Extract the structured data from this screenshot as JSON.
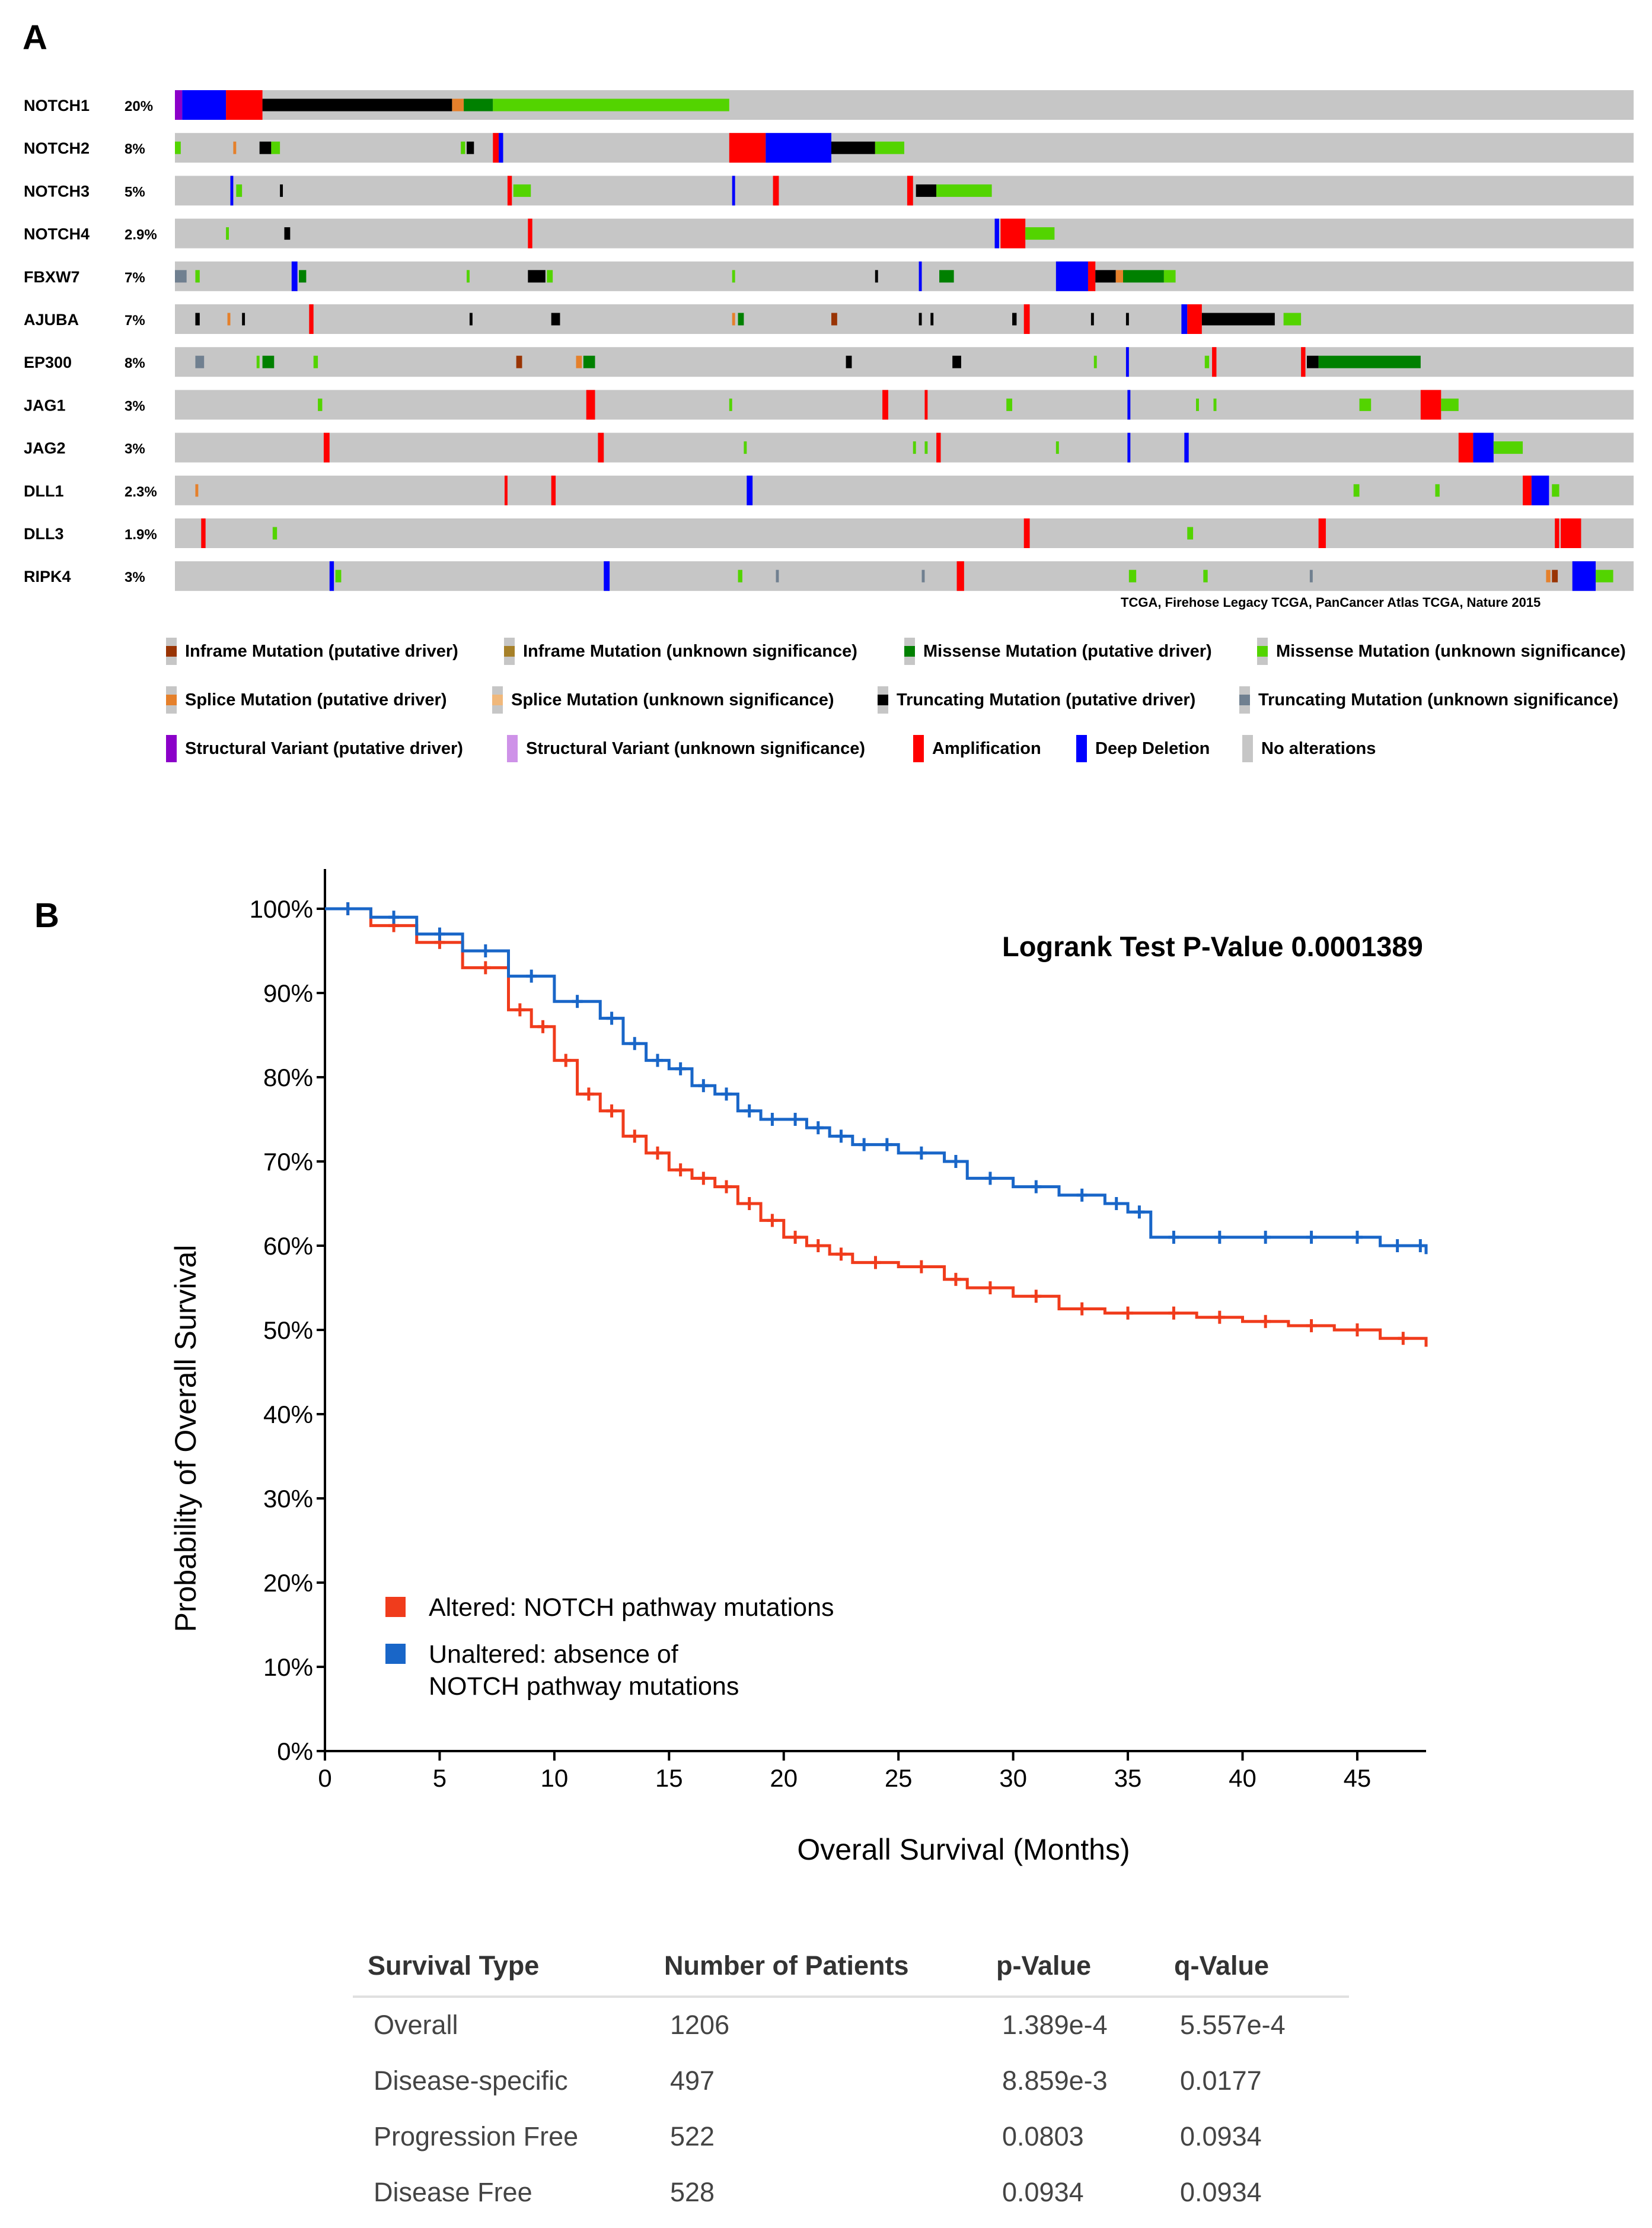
{
  "panel_a": {
    "label": "A",
    "genes": [
      {
        "name": "NOTCH1",
        "pct": "20%"
      },
      {
        "name": "NOTCH2",
        "pct": "8%"
      },
      {
        "name": "NOTCH3",
        "pct": "5%"
      },
      {
        "name": "NOTCH4",
        "pct": "2.9%"
      },
      {
        "name": "FBXW7",
        "pct": "7%"
      },
      {
        "name": "AJUBA",
        "pct": "7%"
      },
      {
        "name": "EP300",
        "pct": "8%"
      },
      {
        "name": "JAG1",
        "pct": "3%"
      },
      {
        "name": "JAG2",
        "pct": "3%"
      },
      {
        "name": "DLL1",
        "pct": "2.3%"
      },
      {
        "name": "DLL3",
        "pct": "1.9%"
      },
      {
        "name": "RIPK4",
        "pct": "3%"
      }
    ],
    "source_note": "TCGA, Firehose Legacy   TCGA, PanCancer Atlas   TCGA, Nature 2015",
    "legend": [
      {
        "label": "Inframe Mutation (putative driver)",
        "color": "#993404",
        "kind": "inner"
      },
      {
        "label": "Inframe Mutation (unknown significance)",
        "color": "#a68028",
        "kind": "inner"
      },
      {
        "label": "Missense Mutation (putative driver)",
        "color": "#008000",
        "kind": "inner"
      },
      {
        "label": "Missense Mutation (unknown significance)",
        "color": "#53d400",
        "kind": "inner"
      },
      {
        "label": "Splice Mutation (putative driver)",
        "color": "#e5802b",
        "kind": "inner"
      },
      {
        "label": "Splice Mutation (unknown significance)",
        "color": "#f0b87b",
        "kind": "inner"
      },
      {
        "label": "Truncating Mutation (putative driver)",
        "color": "#000000",
        "kind": "inner"
      },
      {
        "label": "Truncating Mutation (unknown significance)",
        "color": "#708090",
        "kind": "inner"
      },
      {
        "label": "Structural Variant (putative driver)",
        "color": "#8b00c9",
        "kind": "full"
      },
      {
        "label": "Structural Variant (unknown significance)",
        "color": "#ce92e8",
        "kind": "full"
      },
      {
        "label": "Amplification",
        "color": "#ff0000",
        "kind": "full"
      },
      {
        "label": "Deep Deletion",
        "color": "#0000ff",
        "kind": "full"
      },
      {
        "label": "No alterations",
        "color": "#c6c6c6",
        "kind": "full"
      }
    ],
    "alteration_colors": {
      "background": "#c6c6c6",
      "amplification": "#ff0000",
      "deep_deletion": "#0000ff",
      "missense_driver": "#008000",
      "missense_vus": "#53d400",
      "truncating_driver": "#000000",
      "truncating_vus": "#708090",
      "splice": "#e5802b",
      "inframe": "#993404",
      "structural": "#8b00c9"
    }
  },
  "panel_b": {
    "label": "B",
    "logrank_text": "Logrank Test P-Value 0.0001389",
    "legend": {
      "altered": "Altered: NOTCH pathway mutations",
      "unaltered_line1": "Unaltered: absence of",
      "unaltered_line2": "NOTCH pathway mutations"
    }
  },
  "chart_data": {
    "type": "line",
    "title": "",
    "xlabel": "Overall Survival (Months)",
    "ylabel": "Probability of Overall Survival",
    "xlim": [
      0,
      48
    ],
    "ylim": [
      0,
      100
    ],
    "x_ticks": [
      0,
      5,
      10,
      15,
      20,
      25,
      30,
      35,
      40,
      45
    ],
    "y_ticks": [
      "0%",
      "10%",
      "20%",
      "30%",
      "40%",
      "50%",
      "60%",
      "70%",
      "80%",
      "90%",
      "100%"
    ],
    "annotation": "Logrank Test P-Value 0.0001389",
    "series": [
      {
        "name": "Altered: NOTCH pathway mutations",
        "color": "#f03c1c",
        "x": [
          0,
          2,
          4,
          6,
          8,
          9,
          10,
          11,
          12,
          13,
          14,
          15,
          16,
          17,
          18,
          19,
          20,
          21,
          22,
          23,
          25,
          27,
          28,
          30,
          32,
          34,
          36,
          38,
          40,
          42,
          44,
          46,
          48
        ],
        "y": [
          100,
          98,
          96,
          93,
          88,
          86,
          82,
          78,
          76,
          73,
          71,
          69,
          68,
          67,
          65,
          63,
          61,
          60,
          59,
          58,
          57.5,
          56,
          55,
          54,
          52.5,
          52,
          52,
          51.5,
          51,
          50.5,
          50,
          49,
          48
        ]
      },
      {
        "name": "Unaltered: absence of NOTCH pathway mutations",
        "color": "#1966c8",
        "x": [
          0,
          2,
          4,
          6,
          8,
          10,
          12,
          13,
          14,
          15,
          16,
          17,
          18,
          19,
          20,
          21,
          22,
          23,
          24,
          25,
          27,
          28,
          30,
          32,
          34,
          35,
          36,
          38,
          40,
          42,
          44,
          46,
          47.5,
          48
        ],
        "y": [
          100,
          99,
          97,
          95,
          92,
          89,
          87,
          84,
          82,
          81,
          79,
          78,
          76,
          75,
          75,
          74,
          73,
          72,
          72,
          71,
          70,
          68,
          67,
          66,
          65,
          64,
          61,
          61,
          61,
          61,
          61,
          60,
          60,
          59
        ]
      }
    ]
  },
  "table": {
    "headers": [
      "Survival Type",
      "Number of Patients",
      "p-Value",
      "q-Value"
    ],
    "rows": [
      [
        "Overall",
        "1206",
        "1.389e-4",
        "5.557e-4"
      ],
      [
        "Disease-specific",
        "497",
        "8.859e-3",
        "0.0177"
      ],
      [
        "Progression Free",
        "522",
        "0.0803",
        "0.0934"
      ],
      [
        "Disease Free",
        "528",
        "0.0934",
        "0.0934"
      ]
    ]
  }
}
